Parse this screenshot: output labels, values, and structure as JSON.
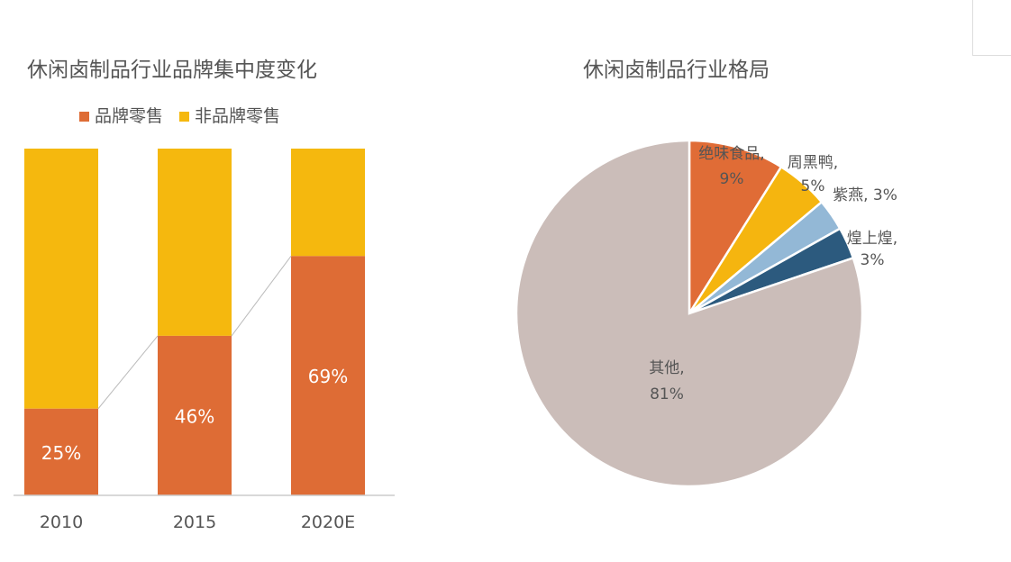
{
  "chart_data": [
    {
      "type": "bar",
      "stacked": true,
      "title": "休闲卤制品行业品牌集中度变化",
      "categories": [
        "2010",
        "2015",
        "2020E"
      ],
      "series": [
        {
          "name": "品牌零售",
          "values": [
            25,
            46,
            69
          ],
          "color": "#DE6C35",
          "labels": [
            "25%",
            "46%",
            "69%"
          ]
        },
        {
          "name": "非品牌零售",
          "values": [
            75,
            54,
            31
          ],
          "color": "#F5B80E"
        }
      ],
      "ylim": [
        0,
        100
      ],
      "grid": false,
      "legend": "top"
    },
    {
      "type": "pie",
      "title": "休闲卤制品行业格局",
      "slices": [
        {
          "label": "绝味食品,",
          "value": 9,
          "text": "9%",
          "color": "#E06C36"
        },
        {
          "label": "周黑鸭,",
          "value": 5,
          "text": "5%",
          "color": "#F5B50F"
        },
        {
          "label": "紫燕,",
          "value": 3,
          "text": "3%",
          "color": "#93B8D6"
        },
        {
          "label": "煌上煌,",
          "value": 3,
          "text": "3%",
          "color": "#2C5A7E"
        },
        {
          "label": "其他,",
          "value": 81,
          "text": "81%",
          "color": "#CBBDB9"
        }
      ]
    }
  ]
}
